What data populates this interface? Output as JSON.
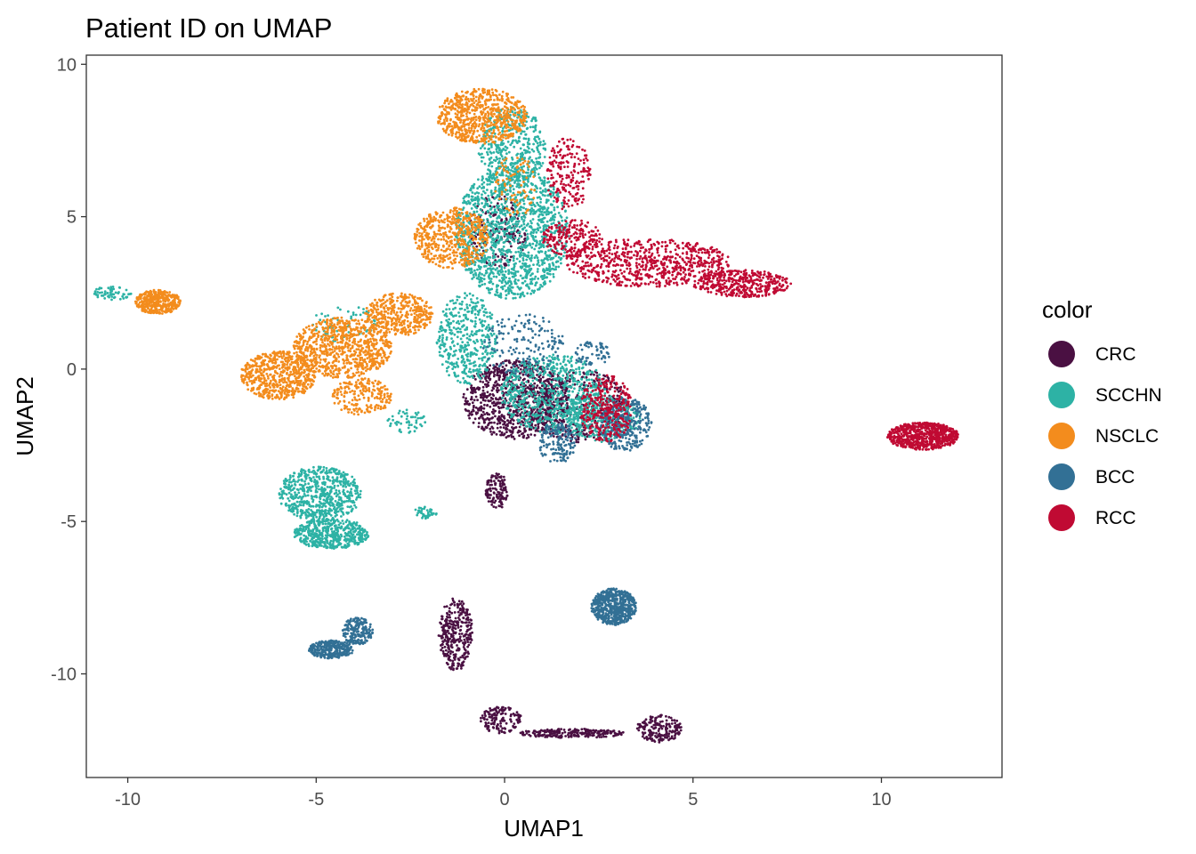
{
  "chart_data": {
    "type": "scatter",
    "title": "Patient ID on UMAP",
    "xlabel": "UMAP1",
    "ylabel": "UMAP2",
    "xlim": [
      -11.1,
      13.2
    ],
    "ylim": [
      -13.4,
      10.3
    ],
    "xticks": [
      -10,
      -5,
      0,
      5,
      10
    ],
    "yticks": [
      -10,
      -5,
      0,
      5,
      10
    ],
    "xtick_labels": [
      "-10",
      "-5",
      "0",
      "5",
      "10"
    ],
    "ytick_labels": [
      "-10",
      "-5",
      "0",
      "5",
      "10"
    ],
    "grid": false,
    "legend": {
      "title": "color",
      "position": "right"
    },
    "series": [
      {
        "name": "CRC",
        "color": "#4a1042",
        "clusters": [
          {
            "cx": 0.3,
            "cy": -1.0,
            "rx": 1.4,
            "ry": 1.3,
            "n": 900
          },
          {
            "cx": 2.0,
            "cy": -1.2,
            "rx": 1.3,
            "ry": 1.2,
            "n": 400
          },
          {
            "cx": -0.2,
            "cy": 4.5,
            "rx": 0.8,
            "ry": 1.2,
            "n": 200
          },
          {
            "cx": -0.2,
            "cy": -4.0,
            "rx": 0.3,
            "ry": 0.6,
            "n": 120
          },
          {
            "cx": -1.3,
            "cy": -8.7,
            "rx": 0.45,
            "ry": 1.2,
            "n": 320
          },
          {
            "cx": -0.1,
            "cy": -11.5,
            "rx": 0.55,
            "ry": 0.45,
            "n": 140
          },
          {
            "cx": 1.8,
            "cy": -11.95,
            "rx": 1.4,
            "ry": 0.15,
            "n": 220
          },
          {
            "cx": 4.1,
            "cy": -11.8,
            "rx": 0.6,
            "ry": 0.45,
            "n": 180
          }
        ]
      },
      {
        "name": "SCCHN",
        "color": "#2db2a5",
        "clusters": [
          {
            "cx": 0.2,
            "cy": 4.5,
            "rx": 1.5,
            "ry": 2.2,
            "n": 1400
          },
          {
            "cx": 0.2,
            "cy": 7.3,
            "rx": 0.9,
            "ry": 1.3,
            "n": 400
          },
          {
            "cx": -1.0,
            "cy": 1.0,
            "rx": 0.8,
            "ry": 1.5,
            "n": 400
          },
          {
            "cx": 1.3,
            "cy": -0.8,
            "rx": 1.4,
            "ry": 1.3,
            "n": 700
          },
          {
            "cx": 2.6,
            "cy": -1.6,
            "rx": 1.0,
            "ry": 0.8,
            "n": 300
          },
          {
            "cx": -4.9,
            "cy": -4.1,
            "rx": 1.1,
            "ry": 0.9,
            "n": 600
          },
          {
            "cx": -4.6,
            "cy": -5.4,
            "rx": 1.0,
            "ry": 0.5,
            "n": 500
          },
          {
            "cx": -2.1,
            "cy": -4.7,
            "rx": 0.3,
            "ry": 0.2,
            "n": 40
          },
          {
            "cx": -10.4,
            "cy": 2.5,
            "rx": 0.5,
            "ry": 0.25,
            "n": 60
          },
          {
            "cx": -4.3,
            "cy": 1.5,
            "rx": 0.9,
            "ry": 0.6,
            "n": 60
          },
          {
            "cx": -2.6,
            "cy": -1.7,
            "rx": 0.5,
            "ry": 0.4,
            "n": 50
          }
        ]
      },
      {
        "name": "NSCLC",
        "color": "#f38c1d",
        "clusters": [
          {
            "cx": -0.6,
            "cy": 8.3,
            "rx": 1.2,
            "ry": 0.9,
            "n": 700
          },
          {
            "cx": -1.4,
            "cy": 4.3,
            "rx": 1.0,
            "ry": 1.0,
            "n": 500
          },
          {
            "cx": -6.0,
            "cy": -0.2,
            "rx": 1.0,
            "ry": 0.8,
            "n": 600
          },
          {
            "cx": -4.3,
            "cy": 0.7,
            "rx": 1.3,
            "ry": 1.0,
            "n": 800
          },
          {
            "cx": -2.8,
            "cy": 1.8,
            "rx": 0.9,
            "ry": 0.7,
            "n": 400
          },
          {
            "cx": -9.2,
            "cy": 2.2,
            "rx": 0.6,
            "ry": 0.4,
            "n": 400
          },
          {
            "cx": -3.8,
            "cy": -0.9,
            "rx": 0.8,
            "ry": 0.6,
            "n": 200
          },
          {
            "cx": 0.3,
            "cy": 6.0,
            "rx": 0.6,
            "ry": 1.0,
            "n": 80
          }
        ]
      },
      {
        "name": "BCC",
        "color": "#327095",
        "clusters": [
          {
            "cx": 2.9,
            "cy": -7.8,
            "rx": 0.6,
            "ry": 0.6,
            "n": 600
          },
          {
            "cx": -4.6,
            "cy": -9.2,
            "rx": 0.6,
            "ry": 0.3,
            "n": 300
          },
          {
            "cx": -3.9,
            "cy": -8.6,
            "rx": 0.4,
            "ry": 0.45,
            "n": 200
          },
          {
            "cx": 3.2,
            "cy": -1.8,
            "rx": 0.7,
            "ry": 0.9,
            "n": 300
          },
          {
            "cx": 1.4,
            "cy": -2.4,
            "rx": 0.5,
            "ry": 0.7,
            "n": 150
          },
          {
            "cx": 2.3,
            "cy": 0.5,
            "rx": 0.5,
            "ry": 0.4,
            "n": 60
          },
          {
            "cx": 0.5,
            "cy": 0.8,
            "rx": 1.1,
            "ry": 1.0,
            "n": 150
          }
        ]
      },
      {
        "name": "RCC",
        "color": "#c00a33",
        "clusters": [
          {
            "cx": 3.8,
            "cy": 3.5,
            "rx": 2.2,
            "ry": 0.8,
            "n": 700
          },
          {
            "cx": 6.3,
            "cy": 2.8,
            "rx": 1.3,
            "ry": 0.45,
            "n": 400
          },
          {
            "cx": 11.1,
            "cy": -2.2,
            "rx": 0.95,
            "ry": 0.45,
            "n": 700
          },
          {
            "cx": 2.7,
            "cy": -1.3,
            "rx": 0.7,
            "ry": 1.1,
            "n": 300
          },
          {
            "cx": 1.7,
            "cy": 6.4,
            "rx": 0.6,
            "ry": 1.2,
            "n": 200
          },
          {
            "cx": 1.8,
            "cy": 4.3,
            "rx": 0.8,
            "ry": 0.6,
            "n": 200
          }
        ]
      }
    ]
  }
}
